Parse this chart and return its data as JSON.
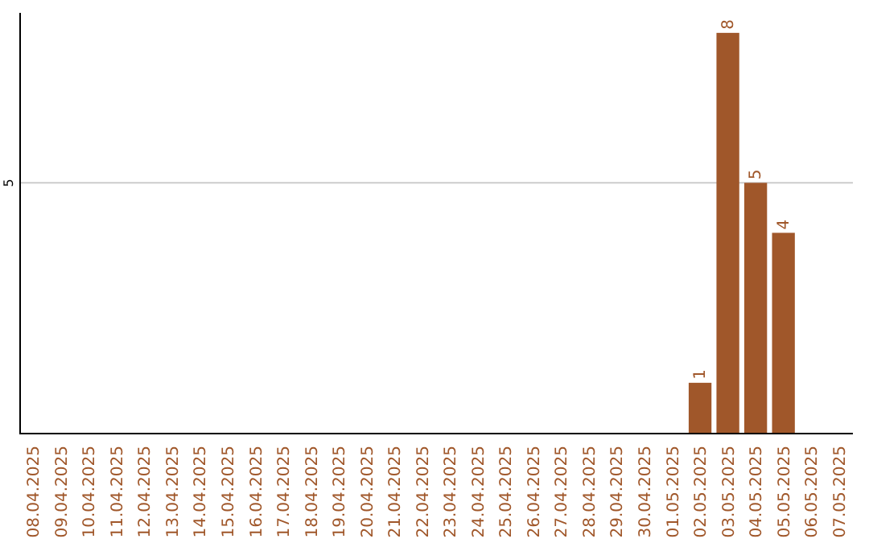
{
  "chart_data": {
    "type": "bar",
    "categories": [
      "08.04.2025",
      "09.04.2025",
      "10.04.2025",
      "11.04.2025",
      "12.04.2025",
      "13.04.2025",
      "14.04.2025",
      "15.04.2025",
      "16.04.2025",
      "17.04.2025",
      "18.04.2025",
      "19.04.2025",
      "20.04.2025",
      "21.04.2025",
      "22.04.2025",
      "23.04.2025",
      "24.04.2025",
      "25.04.2025",
      "26.04.2025",
      "27.04.2025",
      "28.04.2025",
      "29.04.2025",
      "30.04.2025",
      "01.05.2025",
      "02.05.2025",
      "03.05.2025",
      "04.05.2025",
      "05.05.2025",
      "06.05.2025",
      "07.05.2025"
    ],
    "values": [
      null,
      null,
      null,
      null,
      null,
      null,
      null,
      null,
      null,
      null,
      null,
      null,
      null,
      null,
      null,
      null,
      null,
      null,
      null,
      null,
      null,
      null,
      null,
      null,
      1,
      8,
      5,
      4,
      null,
      null
    ],
    "color": "#a0572a",
    "ylim": [
      0,
      8.4
    ],
    "yticks": [
      5
    ],
    "grid": "y",
    "data_labels": true
  }
}
